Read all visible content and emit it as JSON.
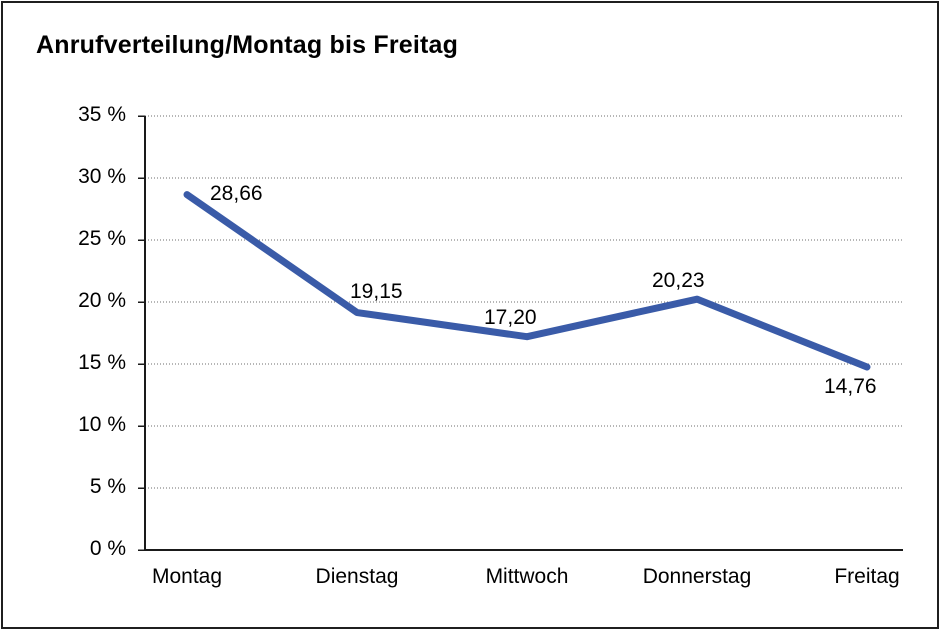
{
  "window": {
    "background_color": "#ffffff",
    "frame_border_color": "#1f1f1f"
  },
  "chart_data": {
    "type": "line",
    "title": "Anrufverteilung/Montag bis Freitag",
    "categories": [
      "Montag",
      "Dienstag",
      "Mittwoch",
      "Donnerstag",
      "Freitag"
    ],
    "series": [
      {
        "name": "Anrufverteilung",
        "values": [
          28.66,
          19.15,
          17.2,
          20.23,
          14.76
        ],
        "point_labels": [
          "28,66",
          "19,15",
          "17,20",
          "20,23",
          "14,76"
        ]
      }
    ],
    "xlabel": "",
    "ylabel": "",
    "ylim": [
      0,
      35
    ],
    "ytick_step": 5,
    "yticks": [
      {
        "value": 0,
        "label": "0 %"
      },
      {
        "value": 5,
        "label": "5 %"
      },
      {
        "value": 10,
        "label": "10 %"
      },
      {
        "value": 15,
        "label": "15 %"
      },
      {
        "value": 20,
        "label": "20 %"
      },
      {
        "value": 25,
        "label": "25 %"
      },
      {
        "value": 30,
        "label": "30 %"
      },
      {
        "value": 35,
        "label": "35 %"
      }
    ],
    "grid": "horizontal-dotted",
    "legend_position": "none",
    "line_color": "#3A5BA8",
    "line_width": 7,
    "axis_color": "#1a1a1a",
    "grid_color": "#6e6e6e",
    "text_color": "#000000"
  }
}
